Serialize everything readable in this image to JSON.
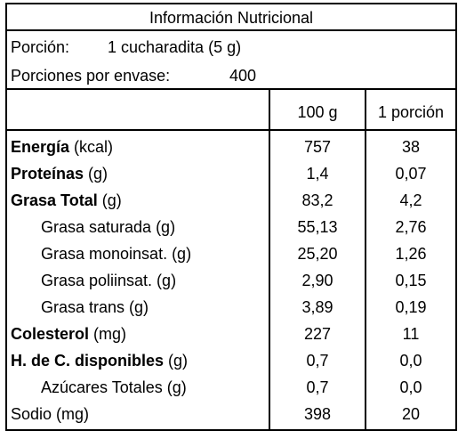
{
  "title": "Información Nutricional",
  "serving": {
    "portion_label": "Porción:",
    "portion_value": "1 cucharadita (5 g)",
    "per_container_label": "Porciones por envase:",
    "per_container_value": "400"
  },
  "columns": {
    "c1": "100 g",
    "c2": "1 porción"
  },
  "rows": [
    {
      "bold": "Energía",
      "unit": " (kcal)",
      "v100": "757",
      "vportion": "38"
    },
    {
      "bold": "Proteínas",
      "unit": " (g)",
      "v100": "1,4",
      "vportion": "0,07"
    },
    {
      "bold": "Grasa Total",
      "unit": " (g)",
      "v100": "83,2",
      "vportion": "4,2"
    },
    {
      "bold": "",
      "unit": "Grasa saturada (g)",
      "v100": "55,13",
      "vportion": "2,76"
    },
    {
      "bold": "",
      "unit": "Grasa monoinsat. (g)",
      "v100": "25,20",
      "vportion": "1,26"
    },
    {
      "bold": "",
      "unit": "Grasa poliinsat. (g)",
      "v100": "2,90",
      "vportion": "0,15"
    },
    {
      "bold": "",
      "unit": "Grasa trans (g)",
      "v100": "3,89",
      "vportion": "0,19"
    },
    {
      "bold": "Colesterol",
      "unit": " (mg)",
      "v100": "227",
      "vportion": "11"
    },
    {
      "bold": "H. de C. disponibles",
      "unit": " (g)",
      "v100": "0,7",
      "vportion": "0,0"
    },
    {
      "bold": "",
      "unit": "Azúcares Totales (g)",
      "v100": "0,7",
      "vportion": "0,0"
    },
    {
      "bold": "",
      "unit": "Sodio (mg)",
      "v100": "398",
      "vportion": "20"
    }
  ]
}
